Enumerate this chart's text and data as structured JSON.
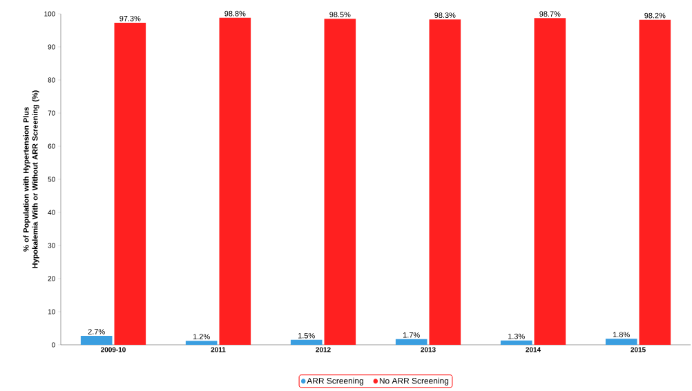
{
  "chart_data": {
    "type": "bar",
    "ylabel": "% of Population with Hypertension Plus Hypokalemia With or Without ARR Screening (%)",
    "categories": [
      "2009-10",
      "2011",
      "2012",
      "2013",
      "2014",
      "2015"
    ],
    "series": [
      {
        "name": "ARR Screening",
        "color": "#3a9ee0",
        "values": [
          2.7,
          1.2,
          1.5,
          1.7,
          1.3,
          1.8
        ],
        "value_labels": [
          "2.7%",
          "1.2%",
          "1.5%",
          "1.7%",
          "1.3%",
          "1.8%"
        ]
      },
      {
        "name": "No ARR Screening",
        "color": "#ff2020",
        "values": [
          97.3,
          98.8,
          98.5,
          98.3,
          98.7,
          98.2
        ],
        "value_labels": [
          "97.3%",
          "98.8%",
          "98.5%",
          "98.3%",
          "98.7%",
          "98.2%"
        ]
      }
    ],
    "ylim": [
      0,
      100
    ],
    "yticks": [
      0,
      10,
      20,
      30,
      40,
      50,
      60,
      70,
      80,
      90,
      100
    ],
    "grid": false,
    "legend": "bottom"
  }
}
